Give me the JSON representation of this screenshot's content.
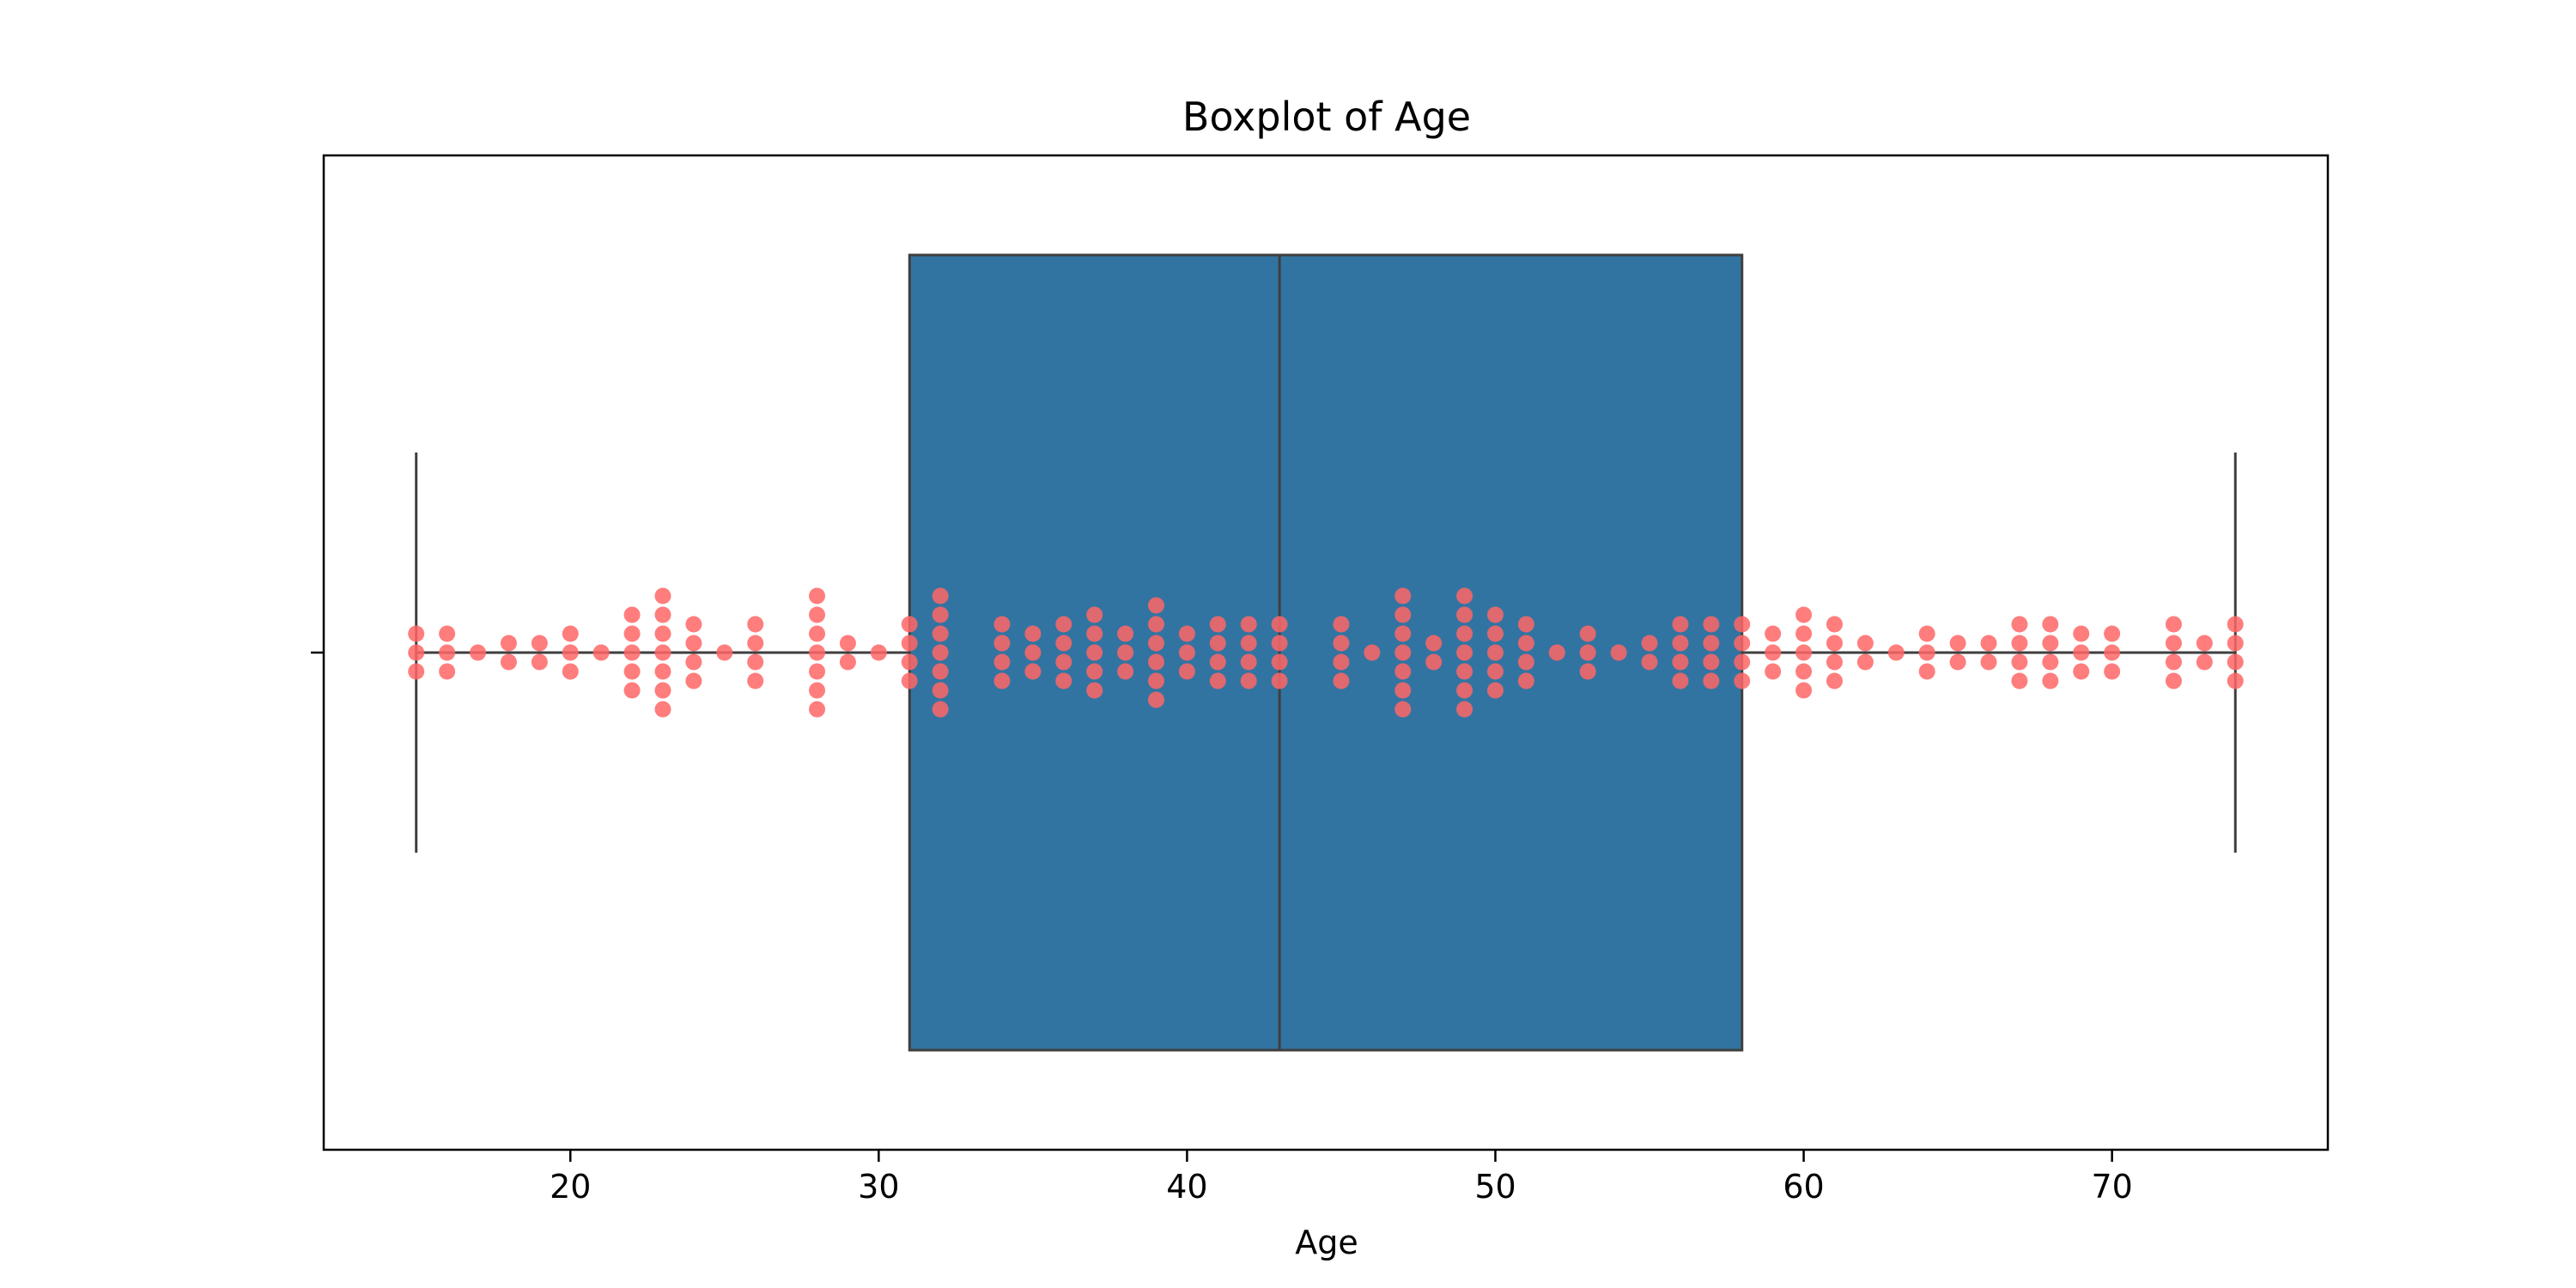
{
  "chart_data": {
    "type": "box",
    "title": "Boxplot of Age",
    "xlabel": "Age",
    "ylabel": "",
    "xlim": [
      12,
      77
    ],
    "xticks": [
      20,
      30,
      40,
      50,
      60,
      70
    ],
    "grid": false,
    "legend": "none",
    "box": {
      "min": 15,
      "q1": 31,
      "median": 43,
      "q3": 58,
      "max": 74,
      "color": "#3274a1",
      "edge_color": "#3f3f3f"
    },
    "points_color": "#ff6666",
    "points": [
      {
        "value": 15,
        "count": 3
      },
      {
        "value": 16,
        "count": 3
      },
      {
        "value": 17,
        "count": 1
      },
      {
        "value": 18,
        "count": 2
      },
      {
        "value": 19,
        "count": 2
      },
      {
        "value": 20,
        "count": 3
      },
      {
        "value": 21,
        "count": 1
      },
      {
        "value": 22,
        "count": 5
      },
      {
        "value": 23,
        "count": 7
      },
      {
        "value": 24,
        "count": 4
      },
      {
        "value": 25,
        "count": 1
      },
      {
        "value": 26,
        "count": 4
      },
      {
        "value": 28,
        "count": 7
      },
      {
        "value": 29,
        "count": 2
      },
      {
        "value": 30,
        "count": 1
      },
      {
        "value": 31,
        "count": 4
      },
      {
        "value": 32,
        "count": 7
      },
      {
        "value": 34,
        "count": 4
      },
      {
        "value": 35,
        "count": 3
      },
      {
        "value": 36,
        "count": 4
      },
      {
        "value": 37,
        "count": 5
      },
      {
        "value": 38,
        "count": 3
      },
      {
        "value": 39,
        "count": 6
      },
      {
        "value": 40,
        "count": 3
      },
      {
        "value": 41,
        "count": 4
      },
      {
        "value": 42,
        "count": 4
      },
      {
        "value": 43,
        "count": 4
      },
      {
        "value": 45,
        "count": 4
      },
      {
        "value": 46,
        "count": 1
      },
      {
        "value": 47,
        "count": 7
      },
      {
        "value": 48,
        "count": 2
      },
      {
        "value": 49,
        "count": 7
      },
      {
        "value": 50,
        "count": 5
      },
      {
        "value": 51,
        "count": 4
      },
      {
        "value": 52,
        "count": 1
      },
      {
        "value": 53,
        "count": 3
      },
      {
        "value": 54,
        "count": 1
      },
      {
        "value": 55,
        "count": 2
      },
      {
        "value": 56,
        "count": 4
      },
      {
        "value": 57,
        "count": 4
      },
      {
        "value": 58,
        "count": 4
      },
      {
        "value": 59,
        "count": 3
      },
      {
        "value": 60,
        "count": 5
      },
      {
        "value": 61,
        "count": 4
      },
      {
        "value": 62,
        "count": 2
      },
      {
        "value": 63,
        "count": 1
      },
      {
        "value": 64,
        "count": 3
      },
      {
        "value": 65,
        "count": 2
      },
      {
        "value": 66,
        "count": 2
      },
      {
        "value": 67,
        "count": 4
      },
      {
        "value": 68,
        "count": 4
      },
      {
        "value": 69,
        "count": 3
      },
      {
        "value": 70,
        "count": 3
      },
      {
        "value": 72,
        "count": 4
      },
      {
        "value": 73,
        "count": 2
      },
      {
        "value": 74,
        "count": 4
      }
    ]
  }
}
